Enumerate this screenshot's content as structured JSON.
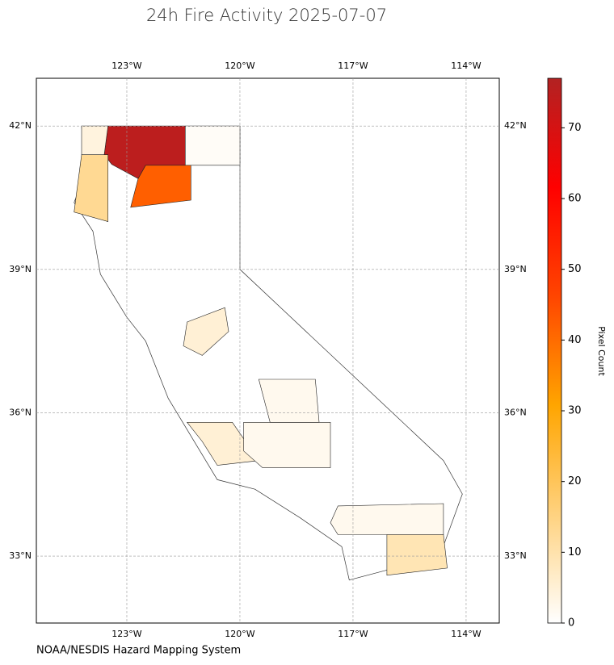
{
  "chart_data": {
    "type": "choropleth",
    "title": "24h Fire Activity 2025-07-07",
    "source": "NOAA/NESDIS Hazard Mapping System",
    "xlim": [
      -125.4,
      -113.12
    ],
    "ylim": [
      31.6,
      43.0
    ],
    "xticks": [
      {
        "value": -123,
        "label": "123°W"
      },
      {
        "value": -120,
        "label": "120°W"
      },
      {
        "value": -117,
        "label": "117°W"
      },
      {
        "value": -114,
        "label": "114°W"
      }
    ],
    "yticks": [
      {
        "value": 33,
        "label": "33°N"
      },
      {
        "value": 36,
        "label": "36°N"
      },
      {
        "value": 39,
        "label": "39°N"
      },
      {
        "value": 42,
        "label": "42°N"
      }
    ],
    "grid": true,
    "colorbar": {
      "label": "Pixel Count",
      "lim": [
        0,
        77
      ],
      "ticks": [
        0,
        10,
        20,
        30,
        40,
        50,
        60,
        70
      ],
      "colors": [
        "#ffffff",
        "#ffd27f",
        "#ffa500",
        "#ff4500",
        "#ff0000",
        "#b22222"
      ]
    },
    "values": [
      75,
      1,
      42,
      13,
      4,
      5,
      2,
      2,
      2,
      9,
      5
    ]
  }
}
